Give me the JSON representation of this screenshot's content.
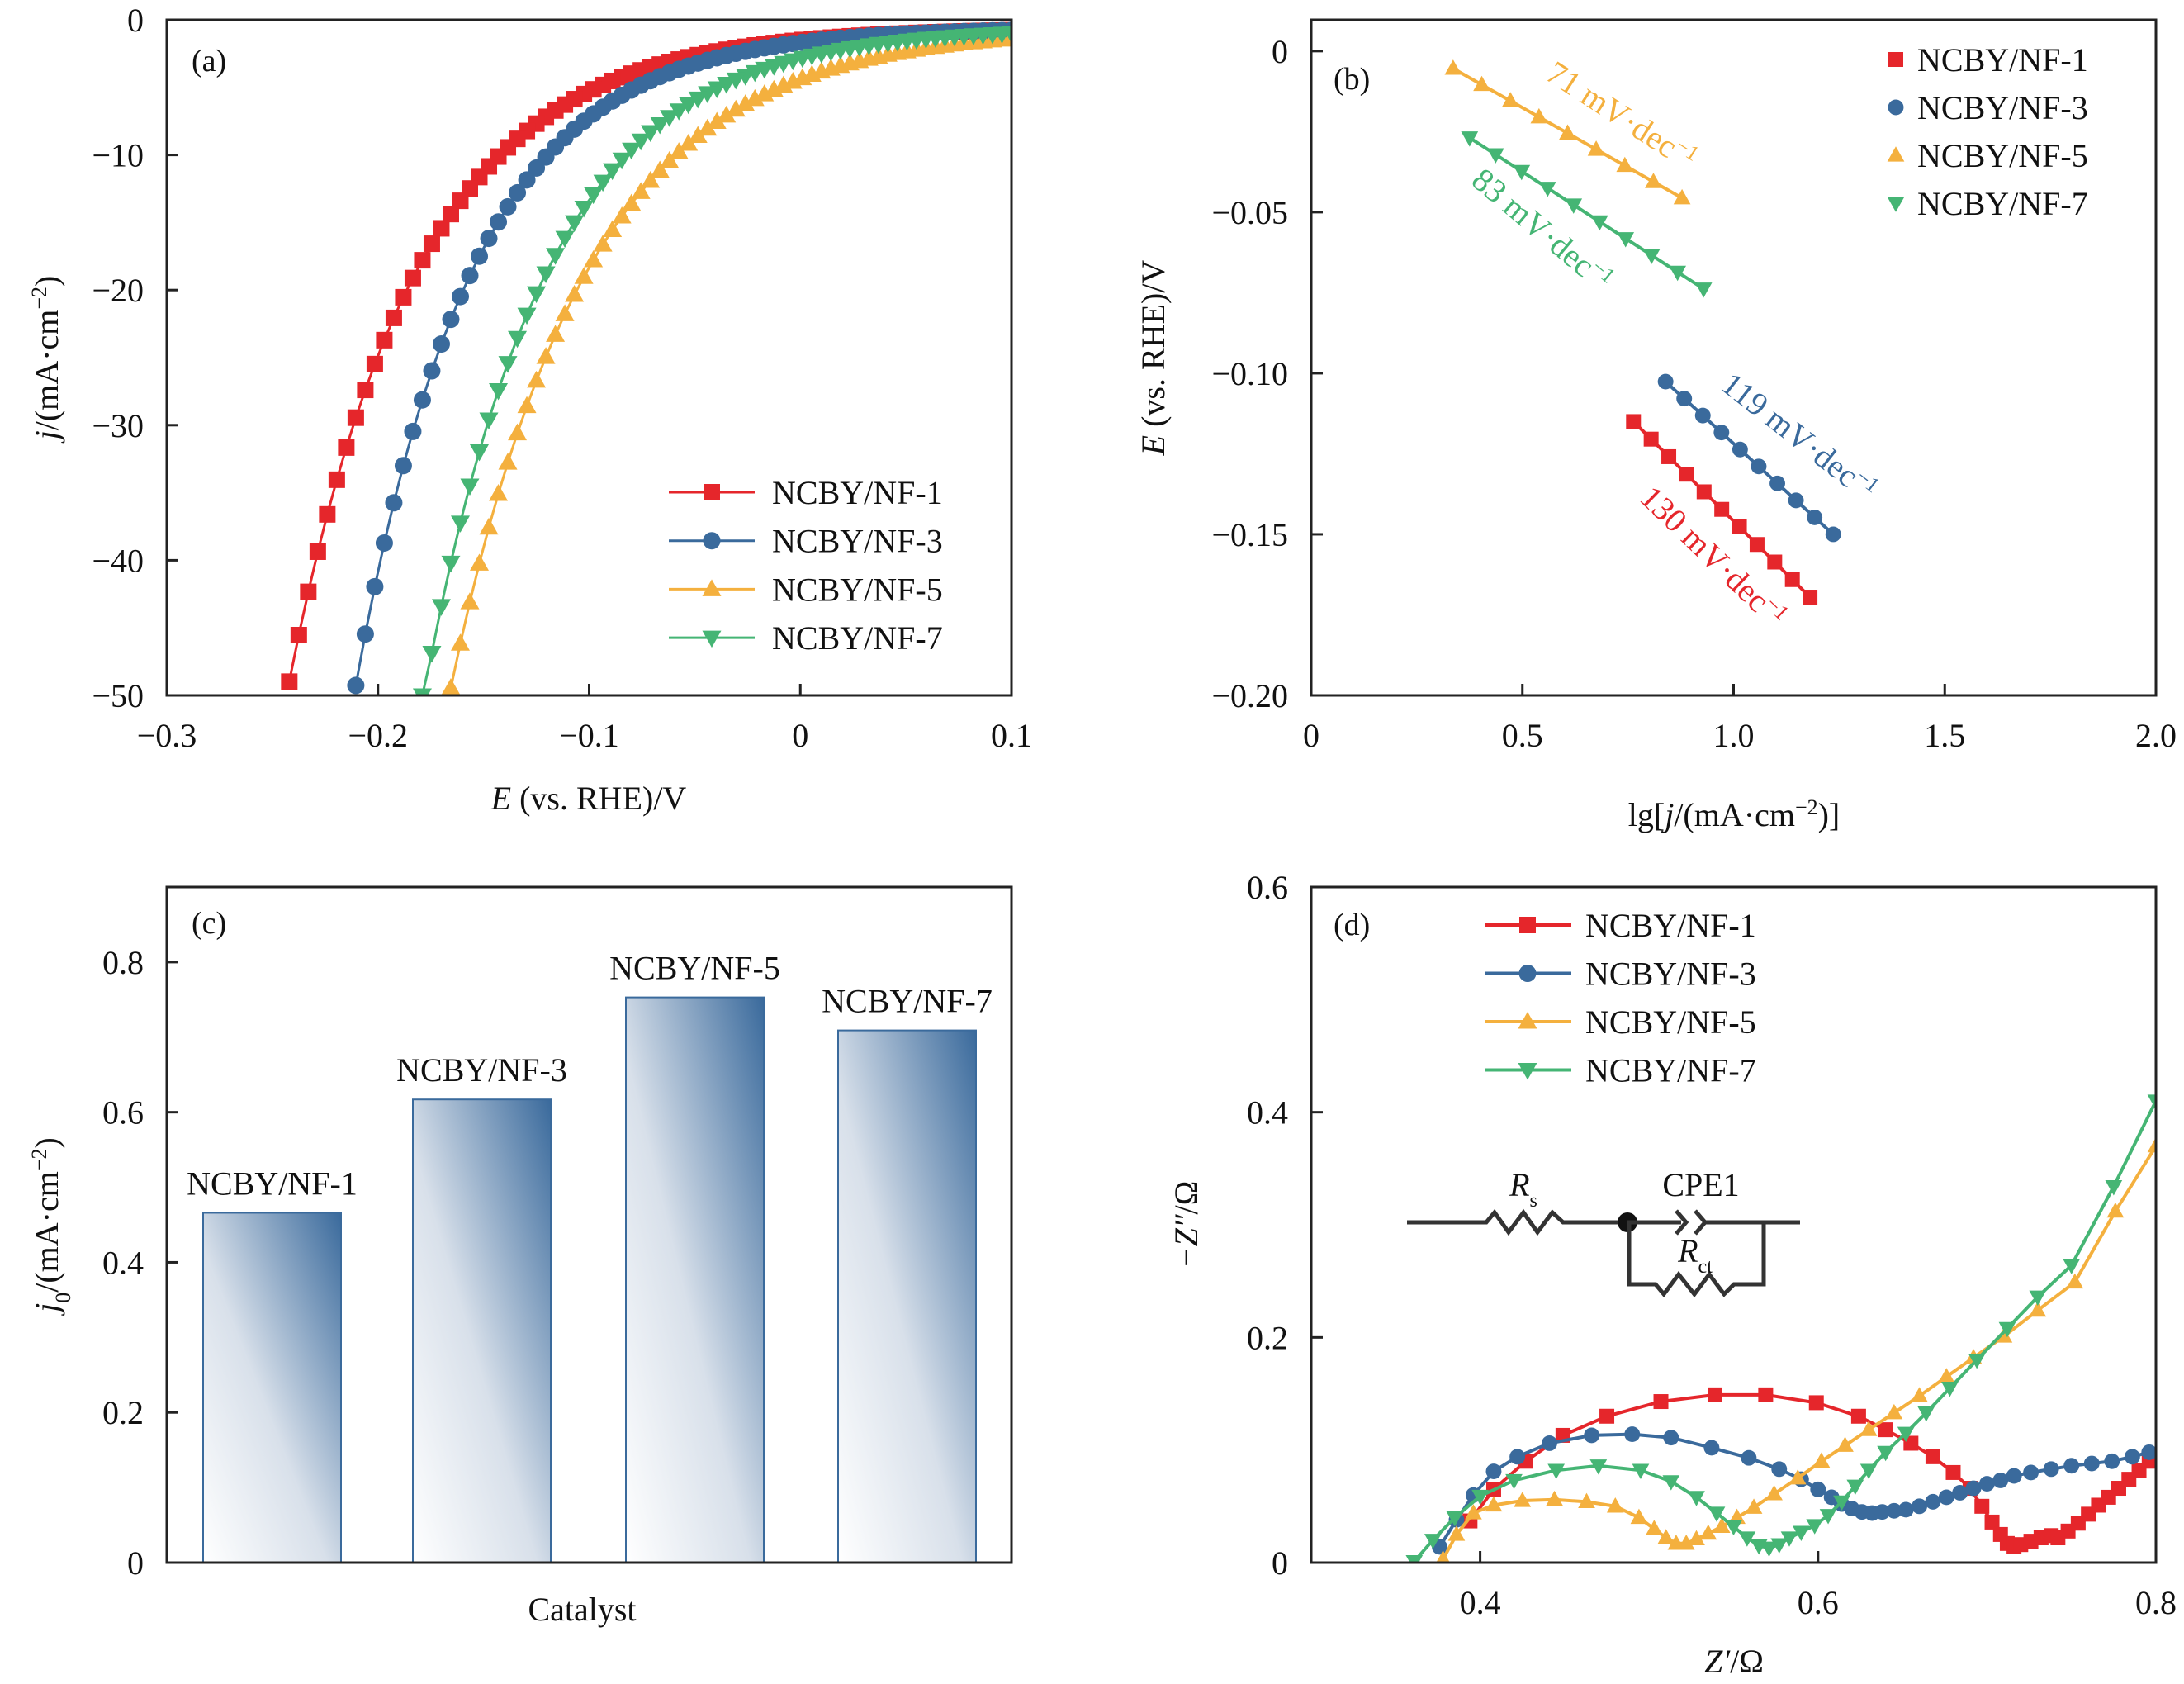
{
  "colors": {
    "NF-1": "#E5262B",
    "NF-3": "#3A6A9C",
    "NF-5": "#F4B03E",
    "NF-7": "#45B574",
    "bar_dark": "#3A6A9C",
    "bar_light": "#FFFFFF",
    "axis": "#222222"
  },
  "chart_data": [
    {
      "panel": "a",
      "tag": "(a)",
      "type": "line",
      "title": "",
      "xlabel_italic": "E",
      "xlabel_rest": " (vs. RHE)/V",
      "ylabel_italic": "j",
      "ylabel_rest": "/(mA·cm",
      "ylabel_sup": "−2",
      "ylabel_close": ")",
      "xlim": [
        -0.3,
        0.1
      ],
      "ylim": [
        -50,
        0
      ],
      "xticks": [
        -0.3,
        -0.2,
        -0.1,
        0,
        0.1
      ],
      "xtick_labels": [
        "−0.3",
        "−0.2",
        "−0.1",
        "0",
        "0.1"
      ],
      "yticks": [
        0,
        -10,
        -20,
        -30,
        -40,
        -50
      ],
      "ytick_labels": [
        "0",
        "−10",
        "−20",
        "−30",
        "−40",
        "−50"
      ],
      "grid": false,
      "legend_position": "bottom-right",
      "series": [
        {
          "name": "NCBY/NF-1",
          "key": "NF-1",
          "marker": "square",
          "E_at_50": -0.244,
          "E_at_10": -0.146,
          "x": [],
          "y": []
        },
        {
          "name": "NCBY/NF-3",
          "key": "NF-3",
          "marker": "circle",
          "E_at_50": -0.212,
          "E_at_10": -0.123,
          "x": [],
          "y": []
        },
        {
          "name": "NCBY/NF-5",
          "key": "NF-5",
          "marker": "triangle-up",
          "E_at_50": -0.167,
          "E_at_10": -0.063,
          "x": [],
          "y": []
        },
        {
          "name": "NCBY/NF-7",
          "key": "NF-7",
          "marker": "triangle-down",
          "E_at_50": -0.179,
          "E_at_10": -0.086,
          "x": [],
          "y": []
        }
      ]
    },
    {
      "panel": "b",
      "tag": "(b)",
      "type": "line",
      "title": "",
      "xlabel_pre": "lg[",
      "xlabel_italic": "j",
      "xlabel_rest": "/(mA·cm",
      "xlabel_sup": "−2",
      "xlabel_close": ")]",
      "ylabel_italic": "E",
      "ylabel_rest": " (vs. RHE)/V",
      "xlim": [
        0,
        2.0
      ],
      "ylim": [
        -0.2,
        0.0097
      ],
      "xticks": [
        0,
        0.5,
        1.0,
        1.5,
        2.0
      ],
      "xtick_labels": [
        "0",
        "0.5",
        "1.0",
        "1.5",
        "2.0"
      ],
      "yticks": [
        0,
        -0.05,
        -0.1,
        -0.15,
        -0.2
      ],
      "ytick_labels": [
        "0",
        "−0.05",
        "−0.10",
        "−0.15",
        "−0.20"
      ],
      "grid": false,
      "legend_position": "top-right",
      "series": [
        {
          "name": "NCBY/NF-1",
          "key": "NF-1",
          "marker": "square",
          "slope_label": "130 mV·dec",
          "slope_sup": "−1",
          "x_range": [
            0.763,
            1.181
          ],
          "y_range": [
            -0.115,
            -0.1695
          ],
          "n": 11
        },
        {
          "name": "NCBY/NF-3",
          "key": "NF-3",
          "marker": "circle",
          "slope_label": "119 mV·dec",
          "slope_sup": "−1",
          "x_range": [
            0.839,
            1.236
          ],
          "y_range": [
            -0.1026,
            -0.15
          ],
          "n": 10
        },
        {
          "name": "NCBY/NF-5",
          "key": "NF-5",
          "marker": "triangle-up",
          "slope_label": "71 mV·dec",
          "slope_sup": "−1",
          "x_range": [
            0.336,
            0.878
          ],
          "y_range": [
            -0.0054,
            -0.0456
          ],
          "n": 9
        },
        {
          "name": "NCBY/NF-7",
          "key": "NF-7",
          "marker": "triangle-down",
          "slope_label": "83 mV·dec",
          "slope_sup": "−1",
          "x_range": [
            0.375,
            0.929
          ],
          "y_range": [
            -0.0269,
            -0.0738
          ],
          "n": 10
        }
      ]
    },
    {
      "panel": "c",
      "tag": "(c)",
      "type": "bar",
      "title": "",
      "xlabel": "Catalyst",
      "ylabel_italic": "j",
      "ylabel_sub": "0",
      "ylabel_rest": "/(mA·cm",
      "ylabel_sup": "−2",
      "ylabel_close": ")",
      "ylim": [
        0,
        0.9
      ],
      "yticks": [
        0,
        0.2,
        0.4,
        0.6,
        0.8
      ],
      "ytick_labels": [
        "0",
        "0.2",
        "0.4",
        "0.6",
        "0.8"
      ],
      "grid": false,
      "categories": [
        "NCBY/NF-1",
        "NCBY/NF-3",
        "NCBY/NF-5",
        "NCBY/NF-7"
      ],
      "values": [
        0.466,
        0.617,
        0.753,
        0.709
      ]
    },
    {
      "panel": "d",
      "tag": "(d)",
      "type": "line",
      "title": "",
      "xlabel_italic": "Z′",
      "xlabel_rest": "/Ω",
      "ylabel_italic": "−Z″",
      "ylabel_rest": "/Ω",
      "xlim": [
        0.3,
        0.8
      ],
      "ylim": [
        0,
        0.6
      ],
      "xticks": [
        0.4,
        0.6,
        0.8
      ],
      "xtick_labels": [
        "0.4",
        "0.6",
        "0.8"
      ],
      "yticks": [
        0,
        0.2,
        0.4,
        0.6
      ],
      "ytick_labels": [
        "0",
        "0.2",
        "0.4",
        "0.6"
      ],
      "grid": false,
      "legend_position": "top-left",
      "inset": {
        "Rs": "R",
        "Rs_sub": "s",
        "CPE": "CPE1",
        "Rct": "R",
        "Rct_sub": "ct"
      },
      "series": [
        {
          "name": "NCBY/NF-1",
          "key": "NF-1",
          "marker": "square",
          "x": [
            0.394,
            0.408,
            0.427,
            0.449,
            0.475,
            0.507,
            0.539,
            0.569,
            0.599,
            0.624,
            0.64,
            0.655,
            0.668,
            0.68,
            0.69,
            0.697,
            0.703,
            0.708,
            0.712,
            0.716,
            0.72,
            0.726,
            0.732,
            0.738,
            0.742,
            0.748,
            0.754,
            0.76,
            0.766,
            0.772,
            0.778,
            0.784,
            0.79,
            0.796,
            0.8
          ],
          "y": [
            0.037,
            0.065,
            0.09,
            0.113,
            0.13,
            0.143,
            0.149,
            0.149,
            0.142,
            0.13,
            0.118,
            0.106,
            0.094,
            0.08,
            0.066,
            0.05,
            0.036,
            0.025,
            0.017,
            0.014,
            0.016,
            0.019,
            0.022,
            0.024,
            0.022,
            0.028,
            0.035,
            0.043,
            0.051,
            0.058,
            0.066,
            0.074,
            0.082,
            0.09,
            0.096
          ]
        },
        {
          "name": "NCBY/NF-3",
          "key": "NF-3",
          "marker": "circle",
          "x": [
            0.376,
            0.386,
            0.396,
            0.408,
            0.422,
            0.441,
            0.466,
            0.49,
            0.513,
            0.537,
            0.559,
            0.577,
            0.59,
            0.6,
            0.608,
            0.614,
            0.62,
            0.626,
            0.632,
            0.638,
            0.645,
            0.652,
            0.66,
            0.668,
            0.676,
            0.684,
            0.692,
            0.7,
            0.708,
            0.716,
            0.726,
            0.738,
            0.75,
            0.762,
            0.774,
            0.786,
            0.796
          ],
          "y": [
            0.014,
            0.038,
            0.06,
            0.081,
            0.094,
            0.106,
            0.113,
            0.114,
            0.111,
            0.102,
            0.093,
            0.083,
            0.074,
            0.065,
            0.058,
            0.052,
            0.048,
            0.045,
            0.044,
            0.045,
            0.046,
            0.047,
            0.05,
            0.054,
            0.058,
            0.062,
            0.066,
            0.07,
            0.073,
            0.077,
            0.08,
            0.083,
            0.086,
            0.088,
            0.09,
            0.094,
            0.098
          ]
        },
        {
          "name": "NCBY/NF-5",
          "key": "NF-5",
          "marker": "triangle-up",
          "x": [
            0.378,
            0.386,
            0.396,
            0.408,
            0.425,
            0.444,
            0.463,
            0.48,
            0.494,
            0.503,
            0.51,
            0.516,
            0.522,
            0.528,
            0.535,
            0.543,
            0.552,
            0.562,
            0.574,
            0.588,
            0.602,
            0.616,
            0.63,
            0.645,
            0.66,
            0.676,
            0.692,
            0.71,
            0.73,
            0.752,
            0.776,
            0.8
          ],
          "y": [
            0.003,
            0.025,
            0.044,
            0.051,
            0.055,
            0.056,
            0.054,
            0.05,
            0.04,
            0.03,
            0.022,
            0.017,
            0.017,
            0.021,
            0.026,
            0.032,
            0.04,
            0.049,
            0.061,
            0.075,
            0.09,
            0.104,
            0.118,
            0.133,
            0.148,
            0.165,
            0.182,
            0.201,
            0.224,
            0.249,
            0.312,
            0.37
          ]
        },
        {
          "name": "NCBY/NF-7",
          "key": "NF-7",
          "marker": "triangle-down",
          "x": [
            0.361,
            0.372,
            0.385,
            0.4,
            0.42,
            0.445,
            0.47,
            0.495,
            0.513,
            0.528,
            0.54,
            0.55,
            0.558,
            0.565,
            0.571,
            0.577,
            0.583,
            0.59,
            0.598,
            0.606,
            0.614,
            0.622,
            0.63,
            0.64,
            0.652,
            0.664,
            0.678,
            0.694,
            0.712,
            0.73,
            0.75,
            0.775,
            0.8
          ],
          "y": [
            0.001,
            0.02,
            0.04,
            0.059,
            0.073,
            0.082,
            0.086,
            0.082,
            0.072,
            0.058,
            0.044,
            0.032,
            0.022,
            0.015,
            0.013,
            0.016,
            0.022,
            0.027,
            0.033,
            0.042,
            0.054,
            0.068,
            0.082,
            0.098,
            0.115,
            0.133,
            0.155,
            0.18,
            0.208,
            0.236,
            0.264,
            0.334,
            0.41
          ]
        }
      ]
    }
  ]
}
